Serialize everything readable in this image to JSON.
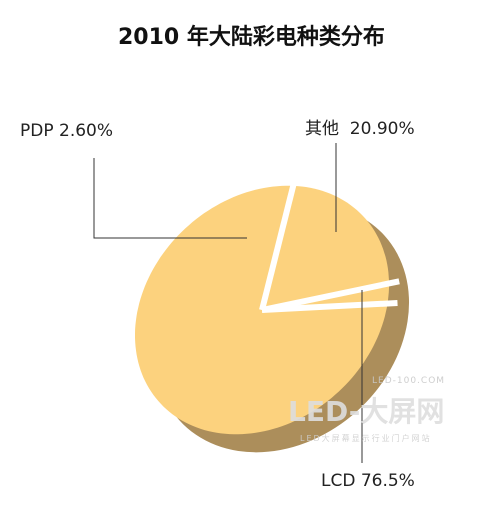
{
  "chart_data": {
    "type": "pie",
    "title": "2010 年大陆彩电种类分布",
    "slices": [
      {
        "name": "LCD",
        "value": 76.5,
        "label": "LCD 76.5%"
      },
      {
        "name": "其他",
        "value": 20.9,
        "label": "其他  20.90%"
      },
      {
        "name": "PDP",
        "value": 2.6,
        "label": "PDP 2.60%"
      }
    ],
    "colors": {
      "face": "#fcd27e",
      "shadow": "#ac8e5b",
      "separator": "#ffffff",
      "leader": "#333333"
    }
  },
  "watermark": {
    "domain": "LED-100.COM",
    "brand": "LED-大屏网",
    "tagline": "LED大屏幕显示行业门户网站"
  }
}
